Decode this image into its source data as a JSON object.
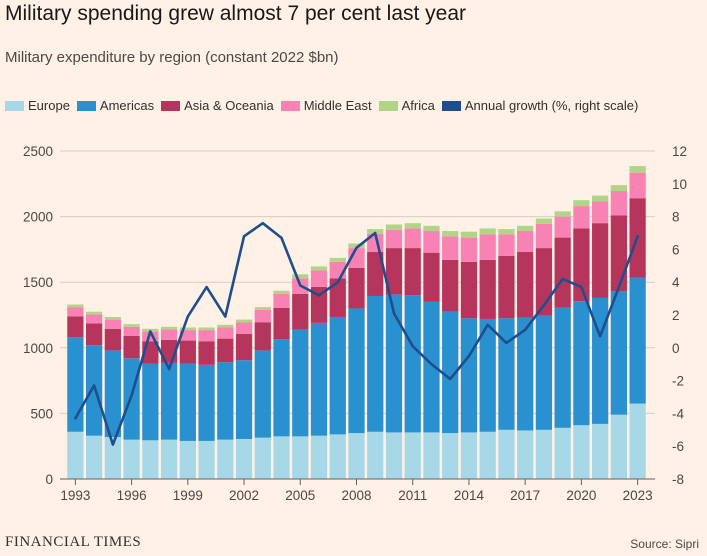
{
  "header": {
    "title": "Military spending grew almost 7 per cent last year",
    "subtitle": "Military expenditure by region (constant 2022 $bn)"
  },
  "footer": {
    "brand": "FINANCIAL TIMES",
    "source": "Source: Sipri"
  },
  "colors": {
    "Europe": "#A6D8E8",
    "Americas": "#2A91D0",
    "Asia & Oceania": "#B5355C",
    "Middle East": "#F982B4",
    "Africa": "#B1D587",
    "Annual growth (%, right scale)": "#1F4E8C",
    "gridline": "#D9CCC0",
    "zero_line": "#66605C"
  },
  "legend": [
    {
      "name": "Europe",
      "color": "#A6D8E8"
    },
    {
      "name": "Americas",
      "color": "#2A91D0"
    },
    {
      "name": "Asia & Oceania",
      "color": "#B5355C"
    },
    {
      "name": "Middle East",
      "color": "#F982B4"
    },
    {
      "name": "Africa",
      "color": "#B1D587"
    },
    {
      "name": "Annual growth (%, right scale)",
      "color": "#1F4E8C"
    }
  ],
  "chart_data": {
    "type": "bar",
    "stacked": true,
    "title": "Military spending grew almost 7 per cent last year",
    "subtitle": "Military expenditure by region (constant 2022 $bn)",
    "categories": [
      1993,
      1994,
      1995,
      1996,
      1997,
      1998,
      1999,
      2000,
      2001,
      2002,
      2003,
      2004,
      2005,
      2006,
      2007,
      2008,
      2009,
      2010,
      2011,
      2012,
      2013,
      2014,
      2015,
      2016,
      2017,
      2018,
      2019,
      2020,
      2021,
      2022,
      2023
    ],
    "x_tick_labels": [
      "1993",
      "1996",
      "1999",
      "2002",
      "2005",
      "2008",
      "2011",
      "2014",
      "2017",
      "2020",
      "2023"
    ],
    "ylim": [
      0,
      2500
    ],
    "y_ticks": [
      0,
      500,
      1000,
      1500,
      2000,
      2500
    ],
    "y2lim": [
      -8,
      12
    ],
    "y2_ticks": [
      -8,
      -6,
      -4,
      -2,
      0,
      2,
      4,
      6,
      8,
      10,
      12
    ],
    "series": [
      {
        "name": "Europe",
        "values": [
          360,
          330,
          320,
          300,
          295,
          300,
          290,
          290,
          300,
          305,
          315,
          325,
          325,
          330,
          340,
          350,
          360,
          355,
          355,
          355,
          350,
          355,
          360,
          375,
          370,
          375,
          390,
          410,
          420,
          490,
          575
        ]
      },
      {
        "name": "Americas",
        "values": [
          720,
          690,
          660,
          620,
          585,
          585,
          590,
          580,
          590,
          600,
          665,
          740,
          815,
          860,
          895,
          950,
          1035,
          1050,
          1045,
          995,
          925,
          870,
          860,
          850,
          860,
          870,
          915,
          945,
          960,
          940,
          960
        ]
      },
      {
        "name": "Asia & Oceania",
        "values": [
          160,
          165,
          165,
          170,
          170,
          175,
          175,
          180,
          180,
          200,
          215,
          240,
          270,
          275,
          295,
          310,
          335,
          355,
          360,
          375,
          395,
          430,
          450,
          475,
          500,
          515,
          535,
          555,
          570,
          580,
          605
        ]
      },
      {
        "name": "Middle East",
        "values": [
          70,
          70,
          70,
          70,
          75,
          80,
          80,
          85,
          85,
          90,
          95,
          105,
          120,
          125,
          125,
          150,
          140,
          140,
          150,
          165,
          180,
          185,
          195,
          165,
          160,
          185,
          160,
          170,
          165,
          185,
          195
        ]
      },
      {
        "name": "Africa",
        "values": [
          20,
          20,
          20,
          20,
          20,
          20,
          20,
          20,
          20,
          20,
          20,
          25,
          30,
          30,
          30,
          35,
          35,
          40,
          40,
          40,
          40,
          45,
          45,
          40,
          40,
          40,
          40,
          45,
          45,
          45,
          50
        ]
      },
      {
        "name": "Annual growth (%, right scale)",
        "axis": "right",
        "type": "line",
        "values": [
          -4.3,
          -2.3,
          -5.9,
          -2.9,
          1.0,
          -1.3,
          1.9,
          3.7,
          1.9,
          6.8,
          7.6,
          6.7,
          3.8,
          3.2,
          4.0,
          6.1,
          7.0,
          2.1,
          0.1,
          -1.0,
          -1.9,
          -0.5,
          1.4,
          0.3,
          1.1,
          2.6,
          4.2,
          3.7,
          0.7,
          3.7,
          6.8
        ]
      }
    ]
  }
}
